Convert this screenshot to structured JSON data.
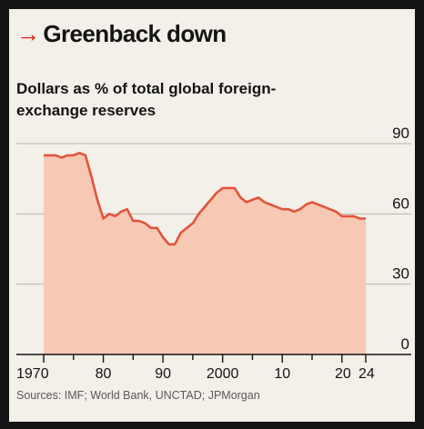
{
  "title": "Greenback down",
  "title_arrow": "→",
  "subtitle": "Dollars as % of total global foreign-exchange reserves",
  "source": "Sources: IMF; World Bank, UNCTAD; JPMorgan",
  "colors": {
    "accent_red": "#e3120b",
    "area_fill": "#f7c9b4",
    "area_line": "#e2543d",
    "grid": "#b9b2aa",
    "background": "#f3efe9",
    "frame": "#141414"
  },
  "chart_data": {
    "type": "area",
    "x_axis": {
      "range": [
        1970,
        2024
      ],
      "ticks": [
        1970,
        1980,
        1990,
        2000,
        2010,
        2020,
        2024
      ],
      "tick_labels": [
        "1970",
        "80",
        "90",
        "2000",
        "10",
        "20",
        "24"
      ]
    },
    "y_axis": {
      "range": [
        0,
        90
      ],
      "ticks": [
        0,
        30,
        60,
        90
      ],
      "tick_labels": [
        "0",
        "30",
        "60",
        "90"
      ],
      "side": "right"
    },
    "grid": true,
    "series": [
      {
        "x": [
          1970,
          1971,
          1972,
          1973,
          1974,
          1975,
          1976,
          1977,
          1978,
          1979,
          1980,
          1981,
          1982,
          1983,
          1984,
          1985,
          1986,
          1987,
          1988,
          1989,
          1990,
          1991,
          1992,
          1993,
          1994,
          1995,
          1996,
          1997,
          1998,
          1999,
          2000,
          2001,
          2002,
          2003,
          2004,
          2005,
          2006,
          2007,
          2008,
          2009,
          2010,
          2011,
          2012,
          2013,
          2014,
          2015,
          2016,
          2017,
          2018,
          2019,
          2020,
          2021,
          2022,
          2023,
          2024
        ],
        "values": [
          85,
          85,
          85,
          84,
          85,
          85,
          86,
          85,
          76,
          66,
          58,
          60,
          59,
          61,
          62,
          57,
          57,
          56,
          54,
          54,
          50,
          47,
          47,
          52,
          54,
          56,
          60,
          63,
          66,
          69,
          71,
          71,
          71,
          67,
          65,
          66,
          67,
          65,
          64,
          63,
          62,
          62,
          61,
          62,
          64,
          65,
          64,
          63,
          62,
          61,
          59,
          59,
          59,
          58,
          58
        ]
      }
    ]
  }
}
